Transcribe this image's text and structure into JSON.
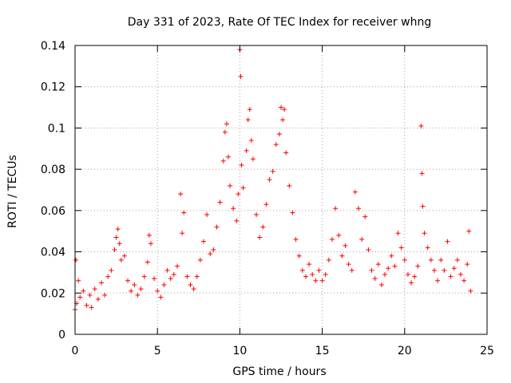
{
  "chart_data": {
    "type": "scatter",
    "title": "Day 331 of 2023, Rate Of TEC Index for receiver whng",
    "xlabel": "GPS time / hours",
    "ylabel": "ROTI / TECUs",
    "xlim": [
      0,
      25
    ],
    "ylim": [
      0,
      0.14
    ],
    "x_ticks": [
      "0",
      "5",
      "10",
      "15",
      "20",
      "25"
    ],
    "y_ticks": [
      "0",
      "0.02",
      "0.04",
      "0.06",
      "0.08",
      "0.1",
      "0.12",
      "0.14"
    ],
    "grid": true,
    "marker": "+",
    "color": "#ff0000",
    "series": [
      {
        "points": [
          [
            0.0,
            0.012
          ],
          [
            0.05,
            0.036
          ],
          [
            0.1,
            0.015
          ],
          [
            0.2,
            0.026
          ],
          [
            0.3,
            0.018
          ],
          [
            0.5,
            0.021
          ],
          [
            0.7,
            0.014
          ],
          [
            0.9,
            0.019
          ],
          [
            1.0,
            0.013
          ],
          [
            1.2,
            0.022
          ],
          [
            1.4,
            0.017
          ],
          [
            1.6,
            0.025
          ],
          [
            1.8,
            0.019
          ],
          [
            2.0,
            0.028
          ],
          [
            2.2,
            0.031
          ],
          [
            2.4,
            0.041
          ],
          [
            2.5,
            0.047
          ],
          [
            2.6,
            0.051
          ],
          [
            2.7,
            0.044
          ],
          [
            2.8,
            0.036
          ],
          [
            3.0,
            0.038
          ],
          [
            3.2,
            0.026
          ],
          [
            3.4,
            0.021
          ],
          [
            3.6,
            0.024
          ],
          [
            3.8,
            0.019
          ],
          [
            4.0,
            0.022
          ],
          [
            4.2,
            0.028
          ],
          [
            4.4,
            0.035
          ],
          [
            4.5,
            0.048
          ],
          [
            4.6,
            0.044
          ],
          [
            4.8,
            0.027
          ],
          [
            5.0,
            0.021
          ],
          [
            5.2,
            0.018
          ],
          [
            5.4,
            0.024
          ],
          [
            5.6,
            0.031
          ],
          [
            5.8,
            0.027
          ],
          [
            6.0,
            0.029
          ],
          [
            6.2,
            0.033
          ],
          [
            6.4,
            0.068
          ],
          [
            6.5,
            0.049
          ],
          [
            6.6,
            0.059
          ],
          [
            6.8,
            0.028
          ],
          [
            7.0,
            0.024
          ],
          [
            7.2,
            0.022
          ],
          [
            7.4,
            0.028
          ],
          [
            7.6,
            0.036
          ],
          [
            7.8,
            0.045
          ],
          [
            8.0,
            0.058
          ],
          [
            8.2,
            0.039
          ],
          [
            8.4,
            0.041
          ],
          [
            8.6,
            0.052
          ],
          [
            8.8,
            0.064
          ],
          [
            9.0,
            0.084
          ],
          [
            9.1,
            0.098
          ],
          [
            9.2,
            0.102
          ],
          [
            9.3,
            0.086
          ],
          [
            9.4,
            0.072
          ],
          [
            9.6,
            0.061
          ],
          [
            9.8,
            0.055
          ],
          [
            9.9,
            0.068
          ],
          [
            10.0,
            0.138
          ],
          [
            10.05,
            0.125
          ],
          [
            10.1,
            0.082
          ],
          [
            10.2,
            0.071
          ],
          [
            10.4,
            0.089
          ],
          [
            10.5,
            0.104
          ],
          [
            10.6,
            0.109
          ],
          [
            10.7,
            0.094
          ],
          [
            10.8,
            0.085
          ],
          [
            11.0,
            0.058
          ],
          [
            11.2,
            0.047
          ],
          [
            11.4,
            0.052
          ],
          [
            11.6,
            0.063
          ],
          [
            11.8,
            0.075
          ],
          [
            12.0,
            0.079
          ],
          [
            12.2,
            0.092
          ],
          [
            12.4,
            0.097
          ],
          [
            12.5,
            0.11
          ],
          [
            12.6,
            0.104
          ],
          [
            12.7,
            0.109
          ],
          [
            12.8,
            0.088
          ],
          [
            13.0,
            0.072
          ],
          [
            13.2,
            0.059
          ],
          [
            13.4,
            0.046
          ],
          [
            13.6,
            0.038
          ],
          [
            13.8,
            0.031
          ],
          [
            14.0,
            0.028
          ],
          [
            14.2,
            0.034
          ],
          [
            14.4,
            0.029
          ],
          [
            14.6,
            0.026
          ],
          [
            14.8,
            0.031
          ],
          [
            15.0,
            0.026
          ],
          [
            15.2,
            0.029
          ],
          [
            15.4,
            0.036
          ],
          [
            15.6,
            0.046
          ],
          [
            15.8,
            0.061
          ],
          [
            16.0,
            0.048
          ],
          [
            16.2,
            0.038
          ],
          [
            16.4,
            0.043
          ],
          [
            16.6,
            0.034
          ],
          [
            16.8,
            0.031
          ],
          [
            17.0,
            0.069
          ],
          [
            17.2,
            0.061
          ],
          [
            17.4,
            0.046
          ],
          [
            17.6,
            0.057
          ],
          [
            17.8,
            0.041
          ],
          [
            18.0,
            0.031
          ],
          [
            18.2,
            0.027
          ],
          [
            18.4,
            0.034
          ],
          [
            18.6,
            0.024
          ],
          [
            18.8,
            0.029
          ],
          [
            19.0,
            0.032
          ],
          [
            19.2,
            0.038
          ],
          [
            19.4,
            0.033
          ],
          [
            19.6,
            0.049
          ],
          [
            19.8,
            0.042
          ],
          [
            20.0,
            0.036
          ],
          [
            20.2,
            0.029
          ],
          [
            20.4,
            0.025
          ],
          [
            20.6,
            0.028
          ],
          [
            20.8,
            0.033
          ],
          [
            21.0,
            0.101
          ],
          [
            21.05,
            0.078
          ],
          [
            21.1,
            0.062
          ],
          [
            21.2,
            0.049
          ],
          [
            21.4,
            0.042
          ],
          [
            21.6,
            0.036
          ],
          [
            21.8,
            0.031
          ],
          [
            22.0,
            0.026
          ],
          [
            22.2,
            0.036
          ],
          [
            22.4,
            0.031
          ],
          [
            22.6,
            0.045
          ],
          [
            22.8,
            0.028
          ],
          [
            23.0,
            0.032
          ],
          [
            23.2,
            0.036
          ],
          [
            23.4,
            0.029
          ],
          [
            23.6,
            0.026
          ],
          [
            23.8,
            0.034
          ],
          [
            23.9,
            0.05
          ],
          [
            24.0,
            0.021
          ]
        ]
      }
    ]
  }
}
